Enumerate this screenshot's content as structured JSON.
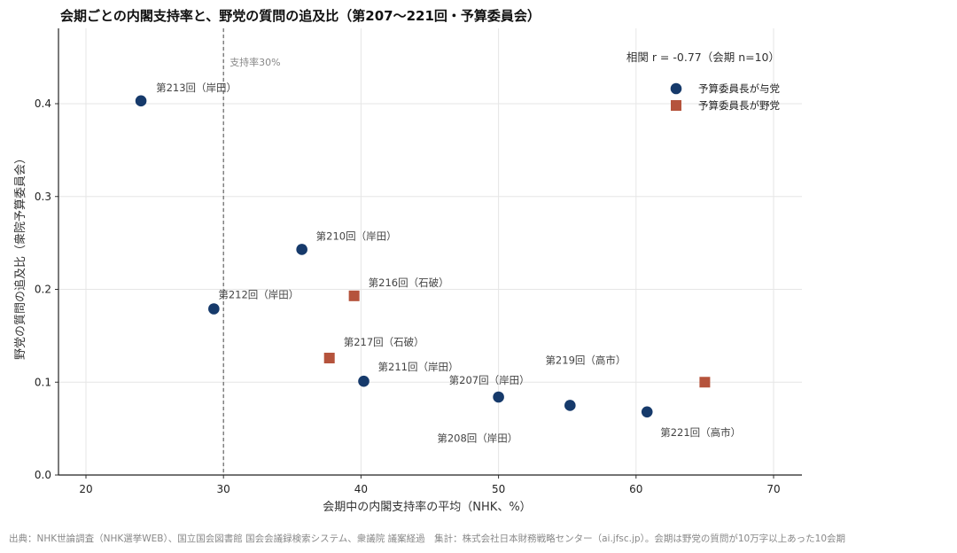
{
  "chart_data": {
    "type": "scatter",
    "title": "会期ごとの内閣支持率と、野党の質問の追及比（第207〜221回・予算委員会）",
    "xlabel": "会期中の内閣支持率の平均（NHK、%）",
    "ylabel": "野党の質問の追及比（衆院予算委員会）",
    "xlim": [
      18,
      72
    ],
    "ylim": [
      0,
      0.48
    ],
    "xticks": [
      20,
      30,
      40,
      50,
      60,
      70
    ],
    "yticks": [
      0.0,
      0.1,
      0.2,
      0.3,
      0.4
    ],
    "ytick_labels": [
      "0.0",
      "0.1",
      "0.2",
      "0.3",
      "0.4"
    ],
    "grid": true,
    "reference_line": {
      "x": 30,
      "label": "支持率30%"
    },
    "annotation": "相関 r = -0.77（会期 n=10）",
    "legend_position": "top-right",
    "series": [
      {
        "name": "予算委員長が与党",
        "marker": "circle",
        "color": "#163a6b",
        "points": [
          {
            "x": 24.0,
            "y": 0.403,
            "label": "第213回（岸田）"
          },
          {
            "x": 35.7,
            "y": 0.243,
            "label": "第210回（岸田）"
          },
          {
            "x": 29.3,
            "y": 0.179,
            "label": "第212回（岸田）"
          },
          {
            "x": 40.2,
            "y": 0.101,
            "label": "第211回（岸田）"
          },
          {
            "x": 50.0,
            "y": 0.084,
            "label": "第207回（岸田）"
          },
          {
            "x": 55.2,
            "y": 0.075,
            "label": "第208回（岸田）"
          },
          {
            "x": 60.8,
            "y": 0.068,
            "label": "第221回（高市）"
          }
        ]
      },
      {
        "name": "予算委員長が野党",
        "marker": "square",
        "color": "#b5533c",
        "points": [
          {
            "x": 39.5,
            "y": 0.193,
            "label": "第216回（石破）"
          },
          {
            "x": 37.7,
            "y": 0.126,
            "label": "第217回（石破）"
          },
          {
            "x": 65.0,
            "y": 0.1,
            "label": "第219回（高市）"
          }
        ]
      }
    ]
  },
  "footer": "出典：NHK世論調査（NHK選挙WEB）、国立国会図書館 国会会議録検索システム、衆議院 議案経過　集計：株式会社日本財務戦略センター（ai.jfsc.jp）。会期は野党の質問が10万字以上あった10会期"
}
